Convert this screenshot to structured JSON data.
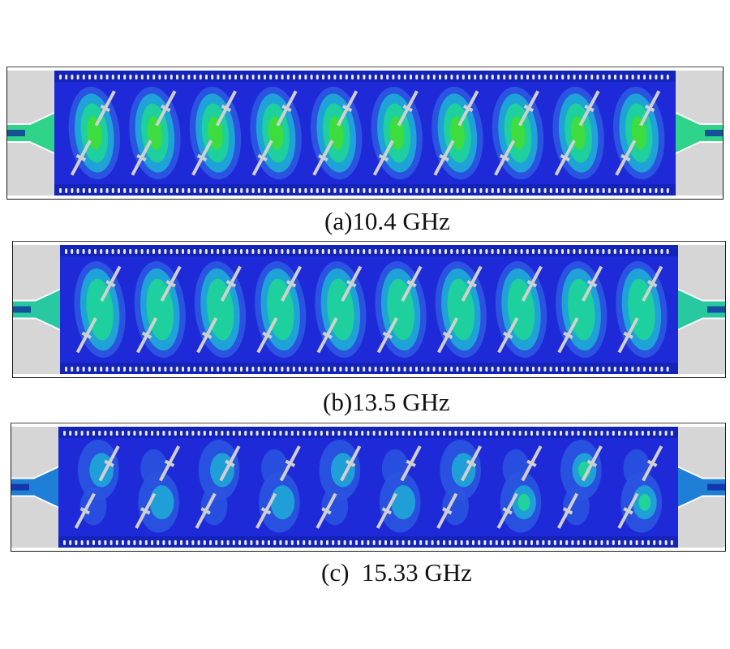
{
  "figure": {
    "panels": [
      {
        "id": "a",
        "caption": "(a)10.4 GHz",
        "field_intensity": "medium",
        "pattern": "uniform",
        "port_color": "#2fd48a"
      },
      {
        "id": "b",
        "caption": "(b)13.5 GHz",
        "field_intensity": "low",
        "pattern": "uniform",
        "port_color": "#28c9a0"
      },
      {
        "id": "c",
        "caption": "(c)  15.33 GHz",
        "field_intensity": "low",
        "pattern": "scattered",
        "port_color": "#1f7fd6"
      }
    ],
    "colors": {
      "substrate": "#1e2ad8",
      "via": "#e8e8e8",
      "slot": "#d0d0d0",
      "pad": "#d6d6d6",
      "field_low": "#2a55e0",
      "field_mid": "#1fa6d6",
      "field_high": "#1fd39a",
      "field_peak": "#3fdc3a"
    }
  }
}
